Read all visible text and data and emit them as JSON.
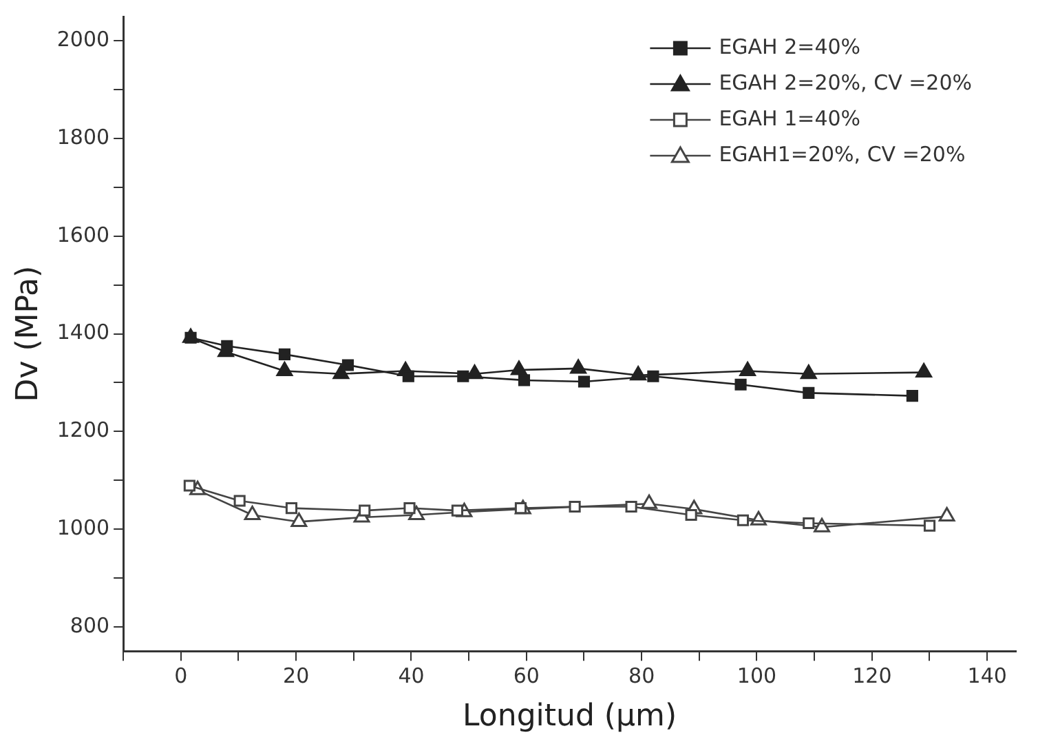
{
  "chart_data": {
    "type": "line",
    "xlabel": "Longitud (µm)",
    "ylabel": "Dv (MPa)",
    "xlim": [
      -10,
      145
    ],
    "ylim": [
      750,
      2050
    ],
    "xticks": [
      {
        "value": -10,
        "label": null
      },
      0,
      {
        "value": 10,
        "label": null
      },
      20,
      {
        "value": 30,
        "label": null
      },
      40,
      {
        "value": 50,
        "label": null
      },
      60,
      {
        "value": 70,
        "label": null
      },
      80,
      {
        "value": 90,
        "label": null
      },
      100,
      {
        "value": 110,
        "label": null
      },
      120,
      {
        "value": 130,
        "label": null
      },
      140
    ],
    "yticks": [
      800,
      {
        "value": 900,
        "label": null
      },
      1000,
      {
        "value": 1100,
        "label": null
      },
      1200,
      {
        "value": 1300,
        "label": null
      },
      1400,
      {
        "value": 1500,
        "label": null
      },
      1600,
      {
        "value": 1700,
        "label": null
      },
      1800,
      {
        "value": 1900,
        "label": null
      },
      2000
    ],
    "grid": false,
    "legend": "top right",
    "line_style": "solid",
    "series": [
      {
        "name": "EGAH 2=40%",
        "color": "#222222",
        "marker": "square",
        "x": [
          1.7,
          8,
          18,
          29,
          39.5,
          49,
          59.6,
          70,
          82,
          97.2,
          109,
          127
        ],
        "values": [
          1392,
          1375,
          1358,
          1336,
          1313,
          1313,
          1305,
          1302,
          1313,
          1296,
          1279,
          1273
        ]
      },
      {
        "name": "EGAH 2=20%, CV =20%",
        "color": "#222222",
        "marker": "triangle",
        "x": [
          1.7,
          7.8,
          18,
          27.8,
          39,
          51,
          58.7,
          69,
          79.4,
          98.4,
          109,
          129
        ],
        "values": [
          1392,
          1363,
          1324,
          1318,
          1324,
          1318,
          1326,
          1329,
          1315,
          1324,
          1318,
          1321
        ]
      },
      {
        "name": "EGAH 1=40%",
        "color": "#444444",
        "marker": "square",
        "x": [
          1.5,
          10.2,
          19.2,
          31.9,
          39.7,
          48,
          59,
          68.4,
          78.2,
          88.6,
          97.6,
          109,
          130
        ],
        "values": [
          1089,
          1058,
          1043,
          1038,
          1043,
          1038,
          1043,
          1046,
          1046,
          1029,
          1018,
          1012,
          1007
        ]
      },
      {
        "name": "EGAH1=20%, CV =20%",
        "color": "#444444",
        "marker": "triangle",
        "x": [
          2.9,
          12.4,
          20.5,
          31.4,
          40.9,
          49.2,
          59.4,
          81.3,
          89.1,
          100.3,
          111.3,
          133
        ],
        "values": [
          1080,
          1029,
          1015,
          1024,
          1029,
          1035,
          1041,
          1052,
          1041,
          1018,
          1004,
          1026
        ]
      }
    ]
  }
}
